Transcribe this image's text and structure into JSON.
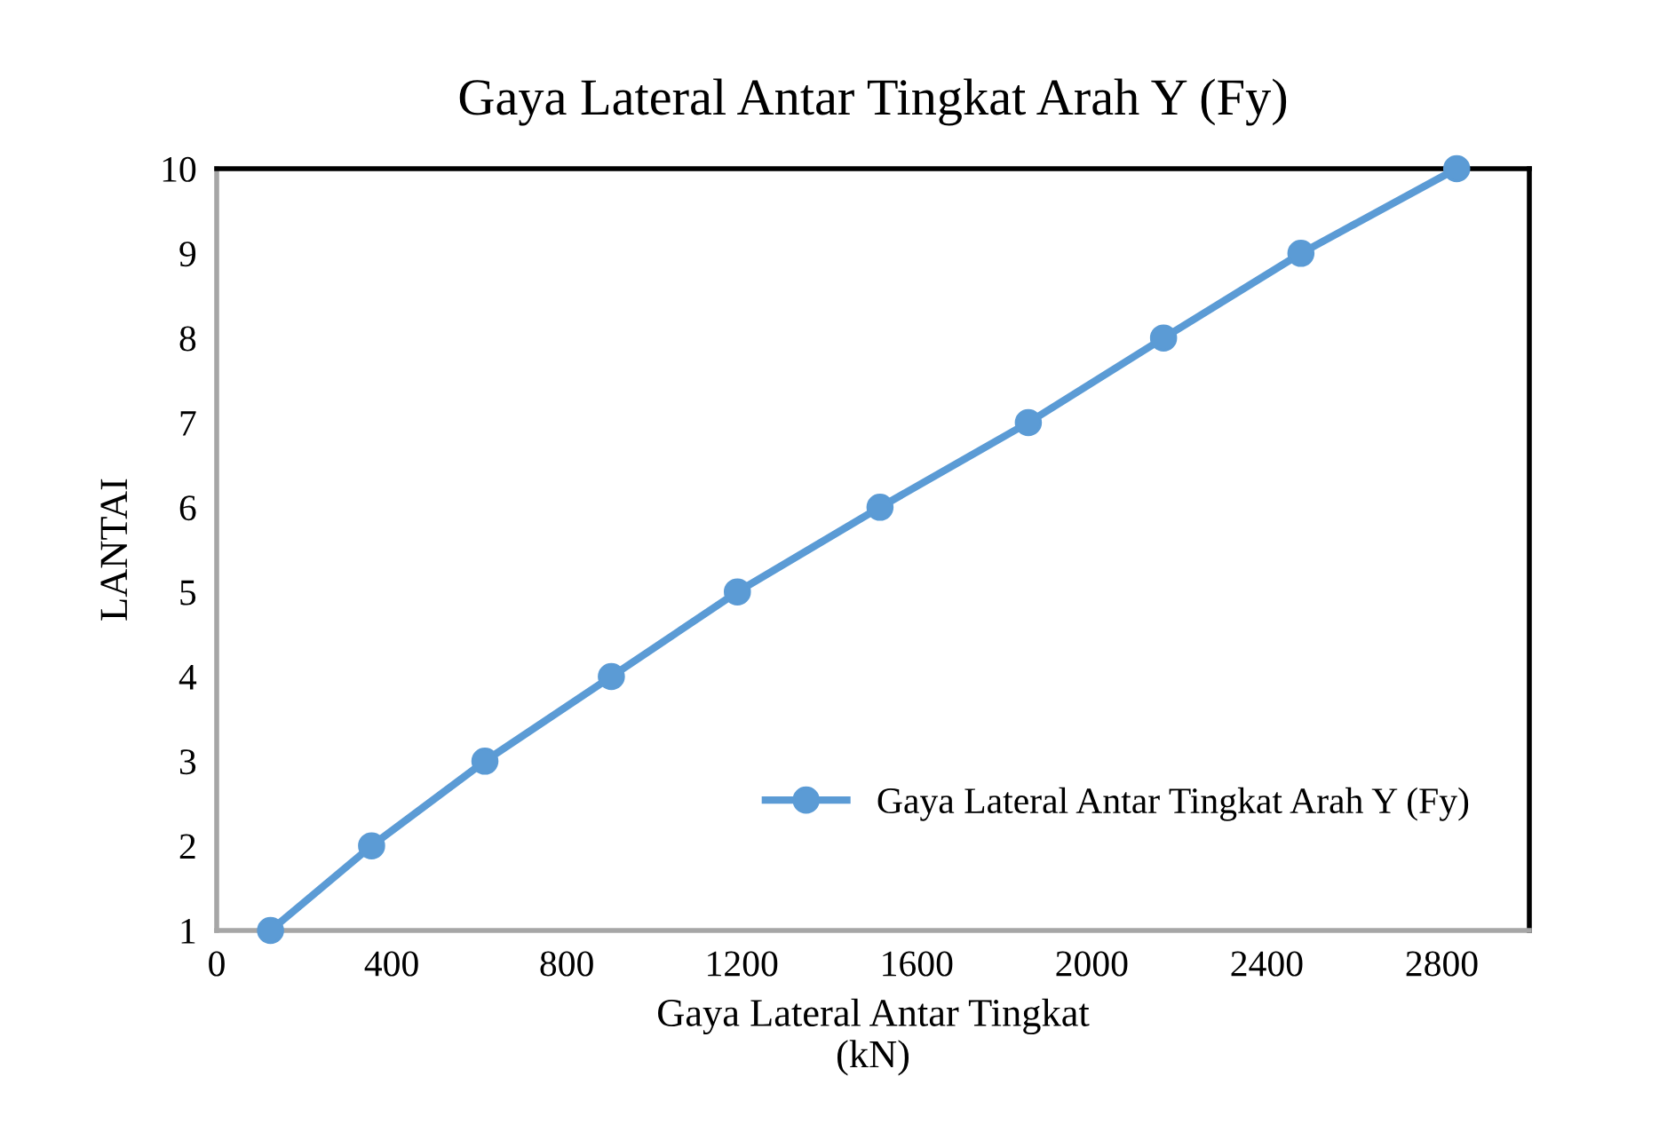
{
  "chart_data": {
    "type": "line",
    "title": "Gaya Lateral Antar Tingkat Arah Y (Fy)",
    "xlabel": "Gaya Lateral Antar Tingkat\n(kN)",
    "ylabel": "LANTAI",
    "series": [
      {
        "name": "Gaya Lateral Antar Tingkat Arah Y (Fy)",
        "color": "#5b9bd5",
        "x": [
          123,
          354,
          613,
          902,
          1190,
          1516,
          1855,
          2164,
          2478,
          2834
        ],
        "values": [
          1,
          2,
          3,
          4,
          5,
          6,
          7,
          8,
          9,
          10
        ]
      }
    ],
    "xlim": [
      0,
      3000
    ],
    "xticks": [
      0,
      400,
      800,
      1200,
      1600,
      2000,
      2400,
      2800
    ],
    "ylim": [
      1,
      10
    ],
    "yticks": [
      1,
      2,
      3,
      4,
      5,
      6,
      7,
      8,
      9,
      10
    ],
    "grid": false,
    "legend": "bottom right",
    "marker": "circle",
    "line_style": "solid"
  }
}
